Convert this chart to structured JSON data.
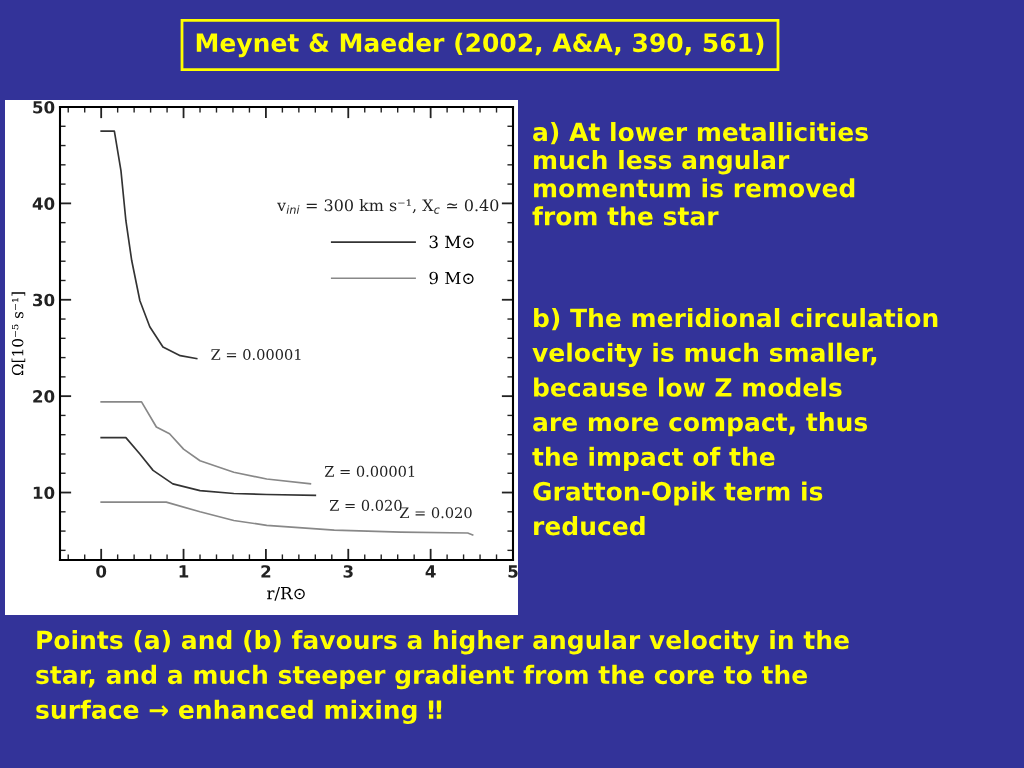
{
  "chart_data": {
    "type": "line",
    "title": "Meynet & Maeder (2002, A&A, 390, 561)",
    "xlabel": "r/R⊙",
    "ylabel": "Ω[10⁻⁵ s⁻¹]",
    "series": [
      {
        "name": "3 M⊙",
        "color": "#333333",
        "x": [
          0,
          0.16,
          0.24,
          0.3,
          0.37,
          0.47,
          0.59,
          0.75,
          0.96,
          1.16
        ],
        "values": [
          47.5,
          47.5,
          43.4,
          38.2,
          34.1,
          29.9,
          27.2,
          25.1,
          24.2,
          23.9
        ]
      },
      {
        "name": "9 M⊙",
        "color": "#888888",
        "x": [
          0,
          0.49,
          0.67,
          0.83,
          1.0,
          1.2,
          1.61,
          2.01,
          2.54
        ],
        "values": [
          19.4,
          19.4,
          16.8,
          16.1,
          14.5,
          13.3,
          12.1,
          11.4,
          10.9
        ]
      },
      {
        "color": "#333333",
        "x": [
          0,
          0.3,
          0.47,
          0.63,
          0.87,
          1.2,
          1.61,
          2.01,
          2.6
        ],
        "values": [
          15.7,
          15.7,
          14.0,
          12.3,
          10.9,
          10.2,
          9.9,
          9.8,
          9.7
        ]
      },
      {
        "color": "#888888",
        "x": [
          0,
          0.79,
          1.2,
          1.61,
          2.01,
          2.83,
          3.64,
          4.45,
          4.51
        ],
        "values": [
          9.0,
          9.0,
          8.0,
          7.1,
          6.6,
          6.1,
          5.9,
          5.8,
          5.6
        ]
      }
    ],
    "xlim": [
      -0.5,
      5
    ],
    "ylim": [
      3,
      50
    ],
    "xticks": [
      0,
      1,
      2,
      3,
      4,
      5
    ],
    "yticks": [
      10,
      20,
      30,
      40,
      50
    ],
    "grid": false,
    "legend": "top right",
    "marker": "none",
    "line_style": "solid",
    "annotations": [
      {
        "text": "Z = 0.00001",
        "x": 1.16,
        "y": 23.9
      },
      {
        "text": "Z = 0.00001",
        "x": 2.54,
        "y": 10.9
      },
      {
        "text": "Z = 0.020",
        "x": 2.6,
        "y": 9.7
      },
      {
        "text": "Z = 0.020",
        "x": 4.51,
        "y": 5.6
      },
      "v$_{ini}$ = 300 km s⁻¹, X$_{c}$ ≃ 0.40",
      "a) At lower metallicities\nmuch less angular\nmomentum is removed\nfrom the star",
      "b) The meridional circulation\nvelocity is much smaller,\nbecause low Z models\nare more compact, thus\nthe impact of the\nGratton-Opik term is\nreduced",
      "Points (a) and (b) favours a higher angular velocity in the\nstar, and a much steeper gradient from the core to the\nsurface → enhanced mixing ‼"
    ]
  }
}
